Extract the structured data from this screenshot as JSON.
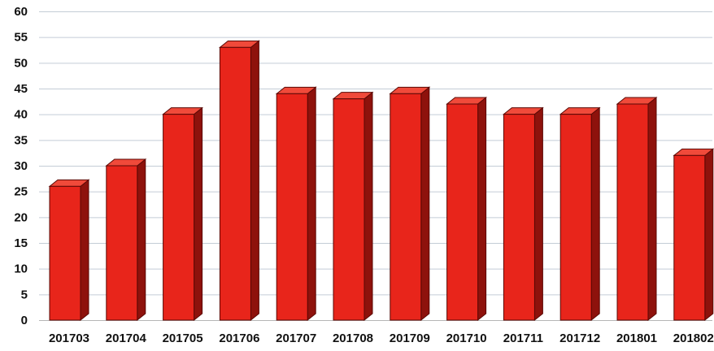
{
  "chart_data": {
    "type": "bar",
    "title": "",
    "xlabel": "",
    "ylabel": "",
    "categories": [
      "201703",
      "201704",
      "201705",
      "201706",
      "201707",
      "201708",
      "201709",
      "201710",
      "201711",
      "201712",
      "201801",
      "201802"
    ],
    "values": [
      26,
      30,
      40,
      53,
      44,
      43,
      44,
      42,
      40,
      40,
      42,
      32
    ],
    "ylim": [
      0,
      60
    ],
    "yticks": [
      0,
      5,
      10,
      15,
      20,
      25,
      30,
      35,
      40,
      45,
      50,
      55,
      60
    ],
    "grid": true,
    "style": "3d-bar",
    "colors": {
      "bar_front": "#e8251b",
      "bar_top": "#f04a3a",
      "bar_side": "#8e120c",
      "bar_outline": "#5a0804",
      "grid": "#c4ccd6",
      "axis": "#b6b6b6",
      "text": "#111111"
    }
  }
}
